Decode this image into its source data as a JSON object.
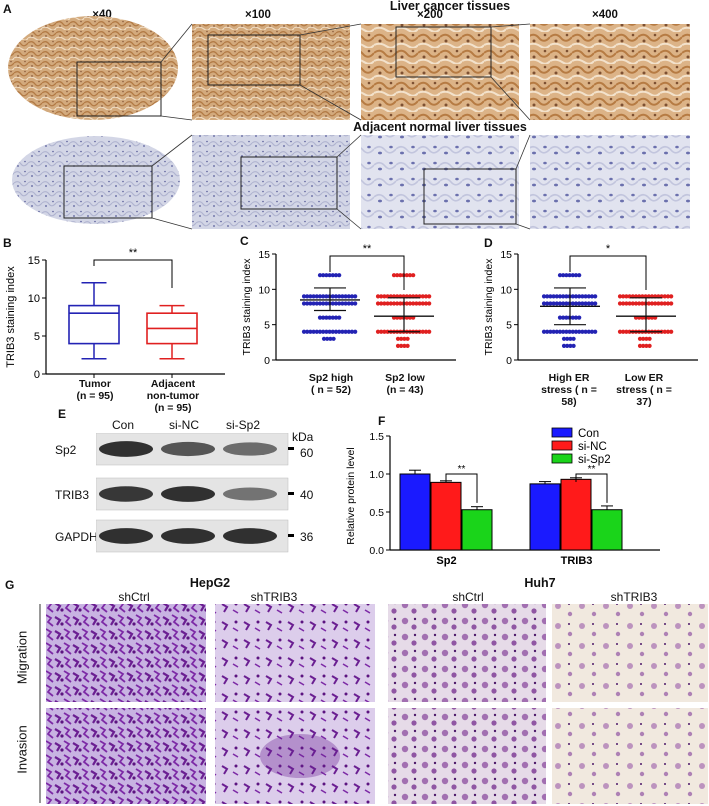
{
  "panelA": {
    "label": "A",
    "magnifications": [
      "×40",
      "×100",
      "×200",
      "×400"
    ],
    "row1_title": "Liver cancer tissues",
    "row2_title": "Adjacent normal liver tissues",
    "colors": {
      "tumor_stain": "#c99a6a",
      "normal_stain": "#c7c9dd"
    }
  },
  "panelB": {
    "label": "B",
    "chart_data": {
      "type": "boxplot",
      "ylabel": "TRIB3 staining index",
      "ylim": [
        0,
        15
      ],
      "yticks": [
        0,
        5,
        10,
        15
      ],
      "significance": "**",
      "categories": [
        {
          "name": "Tumor",
          "sub": "(n = 95)",
          "min": 2,
          "q1": 4,
          "median": 8,
          "q3": 9,
          "max": 12,
          "color": "#2323b4"
        },
        {
          "name": "Adjacent",
          "name2": "non-tumor",
          "sub": "(n = 95)",
          "min": 2,
          "q1": 4,
          "median": 6,
          "q3": 8,
          "max": 9,
          "color": "#e02020"
        }
      ]
    }
  },
  "panelC": {
    "label": "C",
    "chart_data": {
      "type": "scatter",
      "ylabel": "TRIB3 staining index",
      "ylim": [
        0,
        15
      ],
      "yticks": [
        0,
        5,
        10,
        15
      ],
      "significance": "**",
      "groups": [
        {
          "name": "Sp2 high",
          "sub": "( n = 52)",
          "mean": 8.5,
          "sd_low": 7.0,
          "sd_high": 10.2,
          "color": "#2323b4",
          "levels": [
            3,
            4,
            6,
            8,
            9,
            12
          ]
        },
        {
          "name": "Sp2 low",
          "sub": "(n = 43)",
          "mean": 6.2,
          "sd_low": 4.0,
          "sd_high": 8.8,
          "color": "#e02020",
          "levels": [
            2,
            3,
            4,
            6,
            8,
            9,
            12
          ]
        }
      ]
    }
  },
  "panelD": {
    "label": "D",
    "chart_data": {
      "type": "scatter",
      "ylabel": "TRIB3 staining index",
      "ylim": [
        0,
        15
      ],
      "yticks": [
        0,
        5,
        10,
        15
      ],
      "significance": "*",
      "groups": [
        {
          "name": "High ER",
          "name2": "stress",
          "sub": "( n = 58)",
          "mean": 7.6,
          "sd_low": 5.0,
          "sd_high": 10.2,
          "color": "#2323b4",
          "levels": [
            2,
            3,
            4,
            6,
            8,
            9,
            12
          ]
        },
        {
          "name": "Low ER",
          "name2": "stress",
          "sub": "( n = 37)",
          "mean": 6.2,
          "sd_low": 4.0,
          "sd_high": 8.8,
          "color": "#e02020",
          "levels": [
            2,
            3,
            4,
            6,
            8,
            9
          ]
        }
      ]
    }
  },
  "panelE": {
    "label": "E",
    "lanes": [
      "Con",
      "si-NC",
      "si-Sp2"
    ],
    "kda_label": "kDa",
    "rows": [
      {
        "name": "Sp2",
        "kda": "60",
        "intensity": [
          0.95,
          0.7,
          0.55
        ]
      },
      {
        "name": "TRIB3",
        "kda": "40",
        "intensity": [
          0.9,
          0.95,
          0.5
        ]
      },
      {
        "name": "GAPDH",
        "kda": "36",
        "intensity": [
          0.95,
          0.95,
          0.95
        ]
      }
    ]
  },
  "panelF": {
    "label": "F",
    "chart_data": {
      "type": "bar",
      "ylabel": "Relative protein level",
      "ylim": [
        0,
        1.5
      ],
      "yticks": [
        "0.0",
        "0.5",
        "1.0",
        "1.5"
      ],
      "categories": [
        "Sp2",
        "TRIB3"
      ],
      "legend_position": "top-right",
      "series": [
        {
          "name": "Con",
          "color": "#1a1aff",
          "values": [
            1.0,
            0.87
          ],
          "err": [
            0.05,
            0.03
          ]
        },
        {
          "name": "si-NC",
          "color": "#ff1a1a",
          "values": [
            0.89,
            0.93
          ],
          "err": [
            0.02,
            0.02
          ]
        },
        {
          "name": "si-Sp2",
          "color": "#1ad41a",
          "values": [
            0.53,
            0.53
          ],
          "err": [
            0.04,
            0.05
          ]
        }
      ],
      "significance": [
        "**",
        "**"
      ]
    }
  },
  "panelG": {
    "label": "G",
    "cells": [
      {
        "line": "HepG2",
        "cols": [
          "shCtrl",
          "shTRIB3"
        ]
      },
      {
        "line": "Huh7",
        "cols": [
          "shCtrl",
          "shTRIB3"
        ]
      }
    ],
    "rows": [
      "Migration",
      "Invasion"
    ],
    "colors": {
      "stain": "#7a2e9e",
      "hep_bg": "#c9b6e0",
      "huh_bg": "#efe6dc"
    }
  }
}
